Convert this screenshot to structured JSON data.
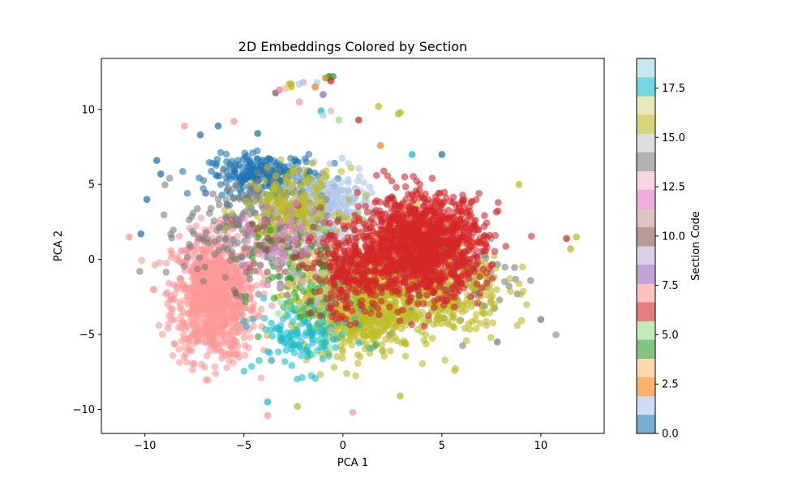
{
  "chart_data": {
    "type": "scatter",
    "title": "2D Embeddings Colored by Section",
    "xlabel": "PCA 1",
    "ylabel": "PCA 2",
    "xlim": [
      -12.2,
      13.2
    ],
    "ylim": [
      -11.6,
      13.4
    ],
    "xticks": [
      -10,
      -5,
      0,
      5,
      10
    ],
    "yticks": [
      -10,
      -5,
      0,
      5,
      10
    ],
    "grid": false,
    "colorbar": {
      "label": "Section Code",
      "range": [
        0,
        19
      ],
      "ticks": [
        0.0,
        2.5,
        5.0,
        7.5,
        10.0,
        12.5,
        15.0,
        17.5
      ],
      "tick_labels": [
        "0.0",
        "2.5",
        "5.0",
        "7.5",
        "10.0",
        "12.5",
        "15.0",
        "17.5"
      ],
      "colors": [
        "#1f77b4",
        "#aec7e8",
        "#ff7f0e",
        "#ffbb78",
        "#2ca02c",
        "#98df8a",
        "#d62728",
        "#ff9896",
        "#9467bd",
        "#c5b0d5",
        "#8c564b",
        "#c49c94",
        "#e377c2",
        "#f7b6d2",
        "#7f7f7f",
        "#c7c7c7",
        "#bcbd22",
        "#dbdb8d",
        "#17becf",
        "#9edae5"
      ]
    },
    "clusters": [
      {
        "section": 7,
        "center": [
          -6.5,
          -2.5
        ],
        "spread": [
          1.7,
          3.4
        ],
        "count": 900
      },
      {
        "section": 0,
        "center": [
          -4.0,
          5.6
        ],
        "spread": [
          2.2,
          1.1
        ],
        "count": 260
      },
      {
        "section": 1,
        "center": [
          -1.0,
          3.5
        ],
        "spread": [
          1.8,
          1.8
        ],
        "count": 300
      },
      {
        "section": 14,
        "center": [
          -4.5,
          2.0
        ],
        "spread": [
          2.8,
          3.0
        ],
        "count": 260
      },
      {
        "section": 14,
        "center": [
          5.5,
          -1.0
        ],
        "spread": [
          3.0,
          3.0
        ],
        "count": 120
      },
      {
        "section": 16,
        "center": [
          0.5,
          -3.0
        ],
        "spread": [
          2.5,
          2.5
        ],
        "count": 650
      },
      {
        "section": 16,
        "center": [
          4.5,
          -2.0
        ],
        "spread": [
          3.0,
          2.8
        ],
        "count": 400
      },
      {
        "section": 16,
        "center": [
          -2.5,
          3.5
        ],
        "spread": [
          2.0,
          2.0
        ],
        "count": 200
      },
      {
        "section": 18,
        "center": [
          -2.0,
          -5.0
        ],
        "spread": [
          2.0,
          2.0
        ],
        "count": 140
      },
      {
        "section": 4,
        "center": [
          -1.5,
          -1.0
        ],
        "spread": [
          2.0,
          2.5
        ],
        "count": 120
      },
      {
        "section": 5,
        "center": [
          -1.0,
          -2.0
        ],
        "spread": [
          1.8,
          2.5
        ],
        "count": 60
      },
      {
        "section": 3,
        "center": [
          -1.0,
          -1.0
        ],
        "spread": [
          1.5,
          2.5
        ],
        "count": 40
      },
      {
        "section": 10,
        "center": [
          -3.0,
          0.5
        ],
        "spread": [
          2.0,
          2.5
        ],
        "count": 60
      },
      {
        "section": 9,
        "center": [
          -2.0,
          1.0
        ],
        "spread": [
          2.0,
          2.5
        ],
        "count": 50
      },
      {
        "section": 12,
        "center": [
          -3.0,
          1.0
        ],
        "spread": [
          1.5,
          2.0
        ],
        "count": 30
      },
      {
        "section": 6,
        "center": [
          4.0,
          1.0
        ],
        "spread": [
          2.5,
          2.6
        ],
        "count": 1200
      },
      {
        "section": 6,
        "center": [
          0.5,
          -1.0
        ],
        "spread": [
          1.6,
          2.4
        ],
        "count": 250
      }
    ],
    "outliers": [
      {
        "section": 6,
        "x": -0.8,
        "y": 12.1
      },
      {
        "section": 4,
        "x": -0.7,
        "y": 12.2
      },
      {
        "section": 4,
        "x": -0.5,
        "y": 12.2
      },
      {
        "section": 16,
        "x": -0.9,
        "y": 12.1
      },
      {
        "section": 16,
        "x": -2.6,
        "y": 11.7
      },
      {
        "section": 16,
        "x": -2.6,
        "y": 11.5
      },
      {
        "section": 16,
        "x": -2.7,
        "y": 11.7
      },
      {
        "section": 19,
        "x": -2.2,
        "y": 11.7
      },
      {
        "section": 9,
        "x": -2.0,
        "y": 11.8
      },
      {
        "section": 19,
        "x": -1.3,
        "y": 11.8
      },
      {
        "section": 10,
        "x": -3.4,
        "y": 11.1
      },
      {
        "section": 12,
        "x": -3.2,
        "y": 11.3
      },
      {
        "section": 3,
        "x": -2.9,
        "y": 11.4
      },
      {
        "section": 6,
        "x": -0.6,
        "y": 11.9
      },
      {
        "section": 2,
        "x": -1.4,
        "y": 11.5
      },
      {
        "section": 8,
        "x": -1.0,
        "y": 11.0
      },
      {
        "section": 7,
        "x": -2.2,
        "y": 10.5
      },
      {
        "section": 18,
        "x": -1.1,
        "y": 9.9
      },
      {
        "section": 19,
        "x": -1.0,
        "y": 9.6
      },
      {
        "section": 15,
        "x": -0.6,
        "y": 9.9
      },
      {
        "section": 5,
        "x": -0.2,
        "y": 9.3
      },
      {
        "section": 6,
        "x": 0.8,
        "y": 9.3
      },
      {
        "section": 16,
        "x": 1.8,
        "y": 10.2
      },
      {
        "section": 16,
        "x": 2.9,
        "y": 9.8
      },
      {
        "section": 16,
        "x": 2.8,
        "y": 9.7
      },
      {
        "section": 2,
        "x": 1.9,
        "y": 7.6
      },
      {
        "section": 18,
        "x": -3.8,
        "y": -9.5
      },
      {
        "section": 16,
        "x": 11.8,
        "y": 1.5
      },
      {
        "section": 6,
        "x": 11.3,
        "y": 1.4
      },
      {
        "section": 16,
        "x": 11.5,
        "y": 0.7
      },
      {
        "section": 7,
        "x": -10.8,
        "y": 1.5
      },
      {
        "section": 0,
        "x": -10.2,
        "y": 1.7
      },
      {
        "section": 0,
        "x": -9.9,
        "y": 4.0
      },
      {
        "section": 0,
        "x": -9.4,
        "y": 6.6
      },
      {
        "section": 0,
        "x": -9.2,
        "y": 5.7
      },
      {
        "section": 0,
        "x": -7.2,
        "y": 8.3
      },
      {
        "section": 0,
        "x": -6.3,
        "y": 8.9
      },
      {
        "section": 0,
        "x": -4.3,
        "y": 8.4
      },
      {
        "section": 7,
        "x": -8.0,
        "y": 8.9
      },
      {
        "section": 7,
        "x": -5.5,
        "y": 9.2
      },
      {
        "section": 16,
        "x": 2.9,
        "y": -9.1
      },
      {
        "section": 16,
        "x": -2.3,
        "y": -9.8
      },
      {
        "section": 7,
        "x": 0.5,
        "y": -10.2
      },
      {
        "section": 7,
        "x": -3.8,
        "y": -10.4
      },
      {
        "section": 14,
        "x": 10.0,
        "y": -4.0
      },
      {
        "section": 14,
        "x": 7.8,
        "y": -5.5
      },
      {
        "section": 18,
        "x": 3.5,
        "y": 7.0
      },
      {
        "section": 0,
        "x": 5.0,
        "y": 7.0
      },
      {
        "section": 16,
        "x": 8.9,
        "y": 5.0
      }
    ]
  }
}
